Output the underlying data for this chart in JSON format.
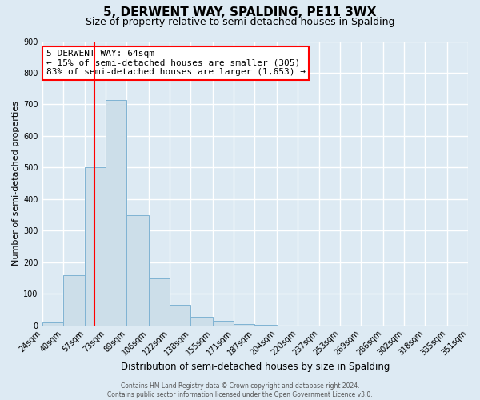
{
  "title": "5, DERWENT WAY, SPALDING, PE11 3WX",
  "subtitle": "Size of property relative to semi-detached houses in Spalding",
  "xlabel": "Distribution of semi-detached houses by size in Spalding",
  "ylabel": "Number of semi-detached properties",
  "bin_edges": [
    24,
    40,
    57,
    73,
    89,
    106,
    122,
    138,
    155,
    171,
    187,
    204,
    220,
    237,
    253,
    269,
    286,
    302,
    318,
    335,
    351
  ],
  "bin_labels": [
    "24sqm",
    "40sqm",
    "57sqm",
    "73sqm",
    "89sqm",
    "106sqm",
    "122sqm",
    "138sqm",
    "155sqm",
    "171sqm",
    "187sqm",
    "204sqm",
    "220sqm",
    "237sqm",
    "253sqm",
    "269sqm",
    "286sqm",
    "302sqm",
    "318sqm",
    "335sqm",
    "351sqm"
  ],
  "bar_heights": [
    10,
    160,
    500,
    715,
    350,
    148,
    65,
    28,
    15,
    5,
    1,
    0,
    0,
    0,
    0,
    0,
    0,
    0,
    0,
    0
  ],
  "bar_color": "#ccdee9",
  "bar_edge_color": "#7fb3d3",
  "ylim": [
    0,
    900
  ],
  "yticks": [
    0,
    100,
    200,
    300,
    400,
    500,
    600,
    700,
    800,
    900
  ],
  "vline_x": 64,
  "vline_color": "red",
  "annotation_title": "5 DERWENT WAY: 64sqm",
  "annotation_line1": "← 15% of semi-detached houses are smaller (305)",
  "annotation_line2": "83% of semi-detached houses are larger (1,653) →",
  "annotation_box_facecolor": "white",
  "annotation_box_edgecolor": "red",
  "footer1": "Contains HM Land Registry data © Crown copyright and database right 2024.",
  "footer2": "Contains public sector information licensed under the Open Government Licence v3.0.",
  "background_color": "#ddeaf3",
  "plot_background_color": "#ddeaf3",
  "grid_color": "white",
  "title_fontsize": 11,
  "subtitle_fontsize": 9,
  "ylabel_fontsize": 8,
  "xlabel_fontsize": 8.5,
  "tick_fontsize": 7,
  "annot_fontsize": 8
}
